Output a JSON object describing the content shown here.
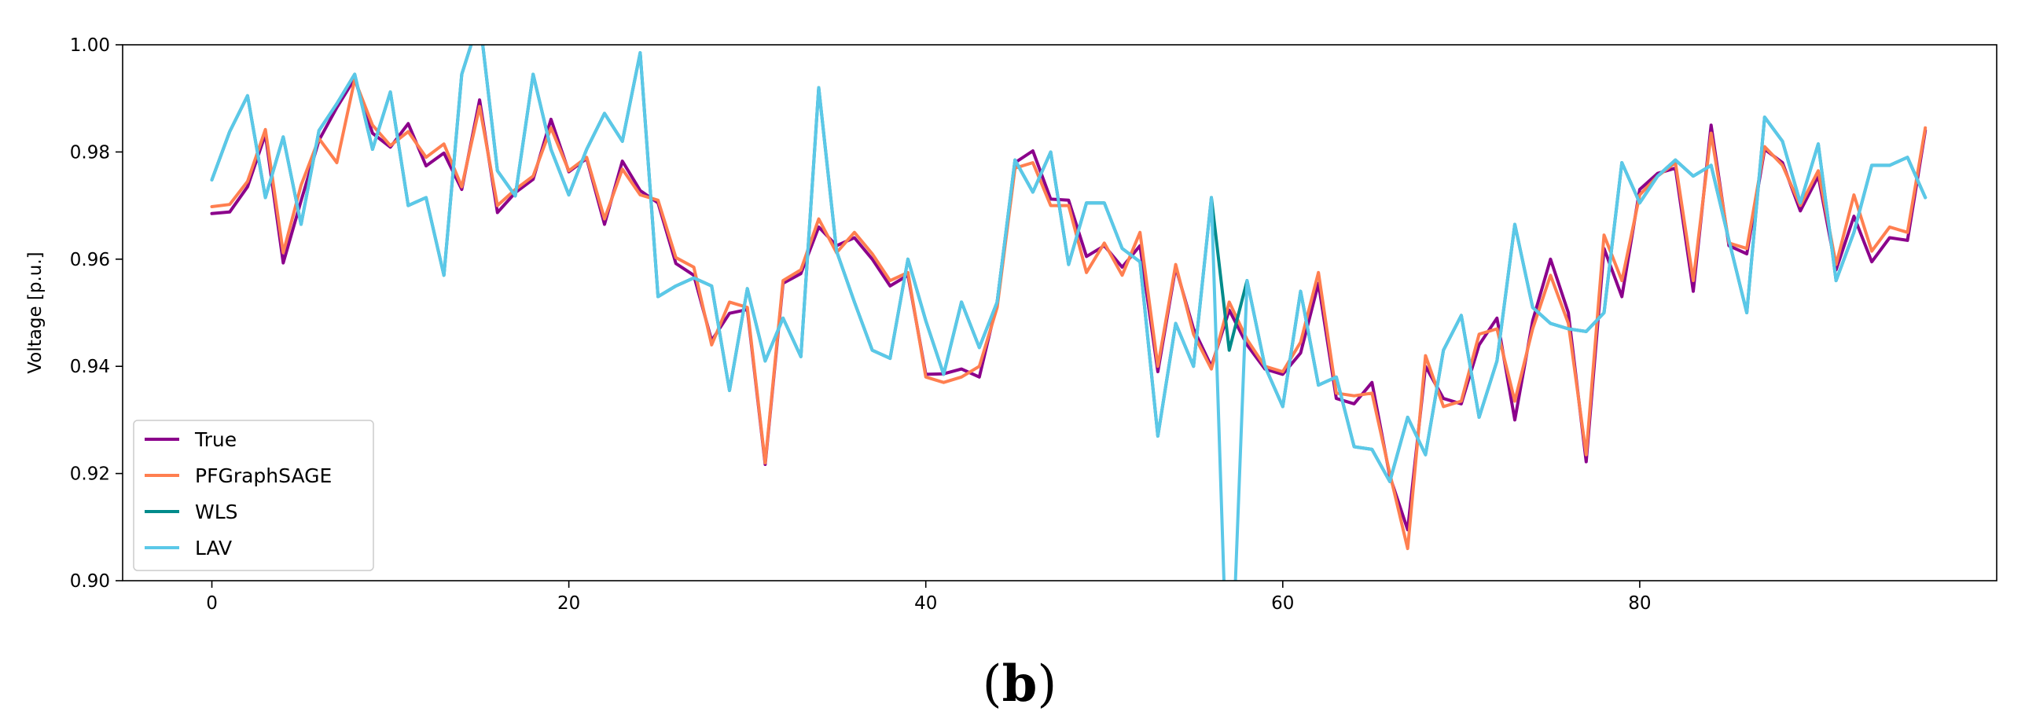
{
  "caption": {
    "open": "(",
    "letter": "b",
    "close": ")"
  },
  "chart_data": {
    "type": "line",
    "ylabel": "Voltage [p.u.]",
    "xlabel": "",
    "xlim": [
      -5,
      100
    ],
    "ylim": [
      0.9,
      1.0
    ],
    "xticks": [
      0,
      20,
      40,
      60,
      80
    ],
    "xtick_labels": [
      "0",
      "20",
      "40",
      "60",
      "80"
    ],
    "yticks": [
      0.9,
      0.92,
      0.94,
      0.96,
      0.98,
      1.0
    ],
    "ytick_labels": [
      "0.90",
      "0.92",
      "0.94",
      "0.96",
      "0.98",
      "1.00"
    ],
    "grid": false,
    "legend_position": "lower-left",
    "series": [
      {
        "name": "True",
        "color": "#8B008B",
        "values": [
          0.9685,
          0.9688,
          0.9735,
          0.9833,
          0.9593,
          0.9709,
          0.9822,
          0.9883,
          0.9937,
          0.9835,
          0.9809,
          0.9853,
          0.9774,
          0.9798,
          0.973,
          0.9897,
          0.9687,
          0.9724,
          0.9749,
          0.9861,
          0.9763,
          0.9788,
          0.9665,
          0.9783,
          0.9728,
          0.9705,
          0.9592,
          0.957,
          0.9448,
          0.9499,
          0.9506,
          0.9217,
          0.9555,
          0.9573,
          0.966,
          0.9625,
          0.964,
          0.96,
          0.955,
          0.957,
          0.9385,
          0.9386,
          0.9395,
          0.938,
          0.952,
          0.978,
          0.9802,
          0.9712,
          0.971,
          0.9605,
          0.9625,
          0.9585,
          0.9625,
          0.939,
          0.9585,
          0.947,
          0.94,
          0.9505,
          0.944,
          0.9395,
          0.9385,
          0.9425,
          0.9555,
          0.934,
          0.933,
          0.937,
          0.9195,
          0.9095,
          0.94,
          0.934,
          0.933,
          0.944,
          0.949,
          0.93,
          0.9485,
          0.96,
          0.95,
          0.9222,
          0.962,
          0.953,
          0.973,
          0.976,
          0.977,
          0.954,
          0.985,
          0.9625,
          0.961,
          0.9805,
          0.978,
          0.969,
          0.9755,
          0.958,
          0.968,
          0.9595,
          0.964,
          0.9635,
          0.984
        ]
      },
      {
        "name": "PFGraphSAGE",
        "color": "#FF7F50",
        "values": [
          0.9698,
          0.9702,
          0.9745,
          0.9842,
          0.9612,
          0.9738,
          0.9825,
          0.978,
          0.9935,
          0.985,
          0.9812,
          0.9838,
          0.979,
          0.9815,
          0.9735,
          0.9885,
          0.97,
          0.973,
          0.9755,
          0.9845,
          0.9765,
          0.979,
          0.9675,
          0.9768,
          0.972,
          0.971,
          0.9603,
          0.9585,
          0.944,
          0.952,
          0.951,
          0.922,
          0.956,
          0.958,
          0.9675,
          0.9612,
          0.965,
          0.961,
          0.956,
          0.9575,
          0.938,
          0.937,
          0.938,
          0.94,
          0.951,
          0.977,
          0.978,
          0.97,
          0.97,
          0.9575,
          0.963,
          0.957,
          0.965,
          0.94,
          0.959,
          0.946,
          0.9395,
          0.952,
          0.945,
          0.94,
          0.939,
          0.9445,
          0.9575,
          0.935,
          0.9345,
          0.935,
          0.92,
          0.906,
          0.942,
          0.9325,
          0.9335,
          0.946,
          0.947,
          0.9335,
          0.947,
          0.957,
          0.948,
          0.9235,
          0.9645,
          0.956,
          0.972,
          0.9755,
          0.978,
          0.956,
          0.9835,
          0.963,
          0.962,
          0.981,
          0.9775,
          0.97,
          0.9765,
          0.959,
          0.972,
          0.9615,
          0.966,
          0.965,
          0.9845
        ]
      },
      {
        "name": "WLS",
        "color": "#008B8B",
        "values": [
          0.9748,
          0.9838,
          0.9905,
          0.9715,
          0.9828,
          0.9665,
          0.984,
          0.989,
          0.9945,
          0.9805,
          0.9912,
          0.97,
          0.9715,
          0.957,
          0.9945,
          1.005,
          0.9765,
          0.9718,
          0.9945,
          0.9805,
          0.972,
          0.9805,
          0.9872,
          0.982,
          0.9985,
          0.953,
          0.955,
          0.9565,
          0.955,
          0.9355,
          0.9545,
          0.941,
          0.949,
          0.9418,
          0.992,
          0.9615,
          0.952,
          0.943,
          0.9415,
          0.96,
          0.9485,
          0.9385,
          0.952,
          0.9435,
          0.952,
          0.9785,
          0.9725,
          0.98,
          0.959,
          0.9705,
          0.9705,
          0.962,
          0.9595,
          0.927,
          0.948,
          0.94,
          0.9715,
          0.943,
          0.956,
          0.94,
          0.9325,
          0.954,
          0.9365,
          0.938,
          0.925,
          0.9245,
          0.9185,
          0.9305,
          0.9235,
          0.943,
          0.9495,
          0.9305,
          0.941,
          0.9665,
          0.951,
          0.948,
          0.947,
          0.9465,
          0.95,
          0.978,
          0.9705,
          0.9755,
          0.9785,
          0.9755,
          0.9775,
          0.9635,
          0.95,
          0.9865,
          0.982,
          0.9705,
          0.9815,
          0.956,
          0.965,
          0.9775,
          0.9775,
          0.979,
          0.9715
        ]
      },
      {
        "name": "LAV",
        "color": "#5BC8E8",
        "values": [
          0.9748,
          0.9838,
          0.9905,
          0.9715,
          0.9828,
          0.9665,
          0.984,
          0.989,
          0.9945,
          0.9805,
          0.9912,
          0.97,
          0.9715,
          0.957,
          0.9945,
          1.005,
          0.9765,
          0.9718,
          0.9945,
          0.9805,
          0.972,
          0.9805,
          0.9872,
          0.982,
          0.9985,
          0.953,
          0.955,
          0.9565,
          0.955,
          0.9355,
          0.9545,
          0.941,
          0.949,
          0.9418,
          0.992,
          0.9615,
          0.952,
          0.943,
          0.9415,
          0.96,
          0.9485,
          0.9385,
          0.952,
          0.9435,
          0.952,
          0.9785,
          0.9725,
          0.98,
          0.959,
          0.9705,
          0.9705,
          0.962,
          0.9595,
          0.927,
          0.948,
          0.94,
          0.9715,
          0.87,
          0.956,
          0.94,
          0.9325,
          0.954,
          0.9365,
          0.938,
          0.925,
          0.9245,
          0.9185,
          0.9305,
          0.9235,
          0.943,
          0.9495,
          0.9305,
          0.941,
          0.9665,
          0.951,
          0.948,
          0.947,
          0.9465,
          0.95,
          0.978,
          0.9705,
          0.9755,
          0.9785,
          0.9755,
          0.9775,
          0.9635,
          0.95,
          0.9865,
          0.982,
          0.9705,
          0.9815,
          0.956,
          0.965,
          0.9775,
          0.9775,
          0.979,
          0.9715
        ]
      }
    ]
  }
}
